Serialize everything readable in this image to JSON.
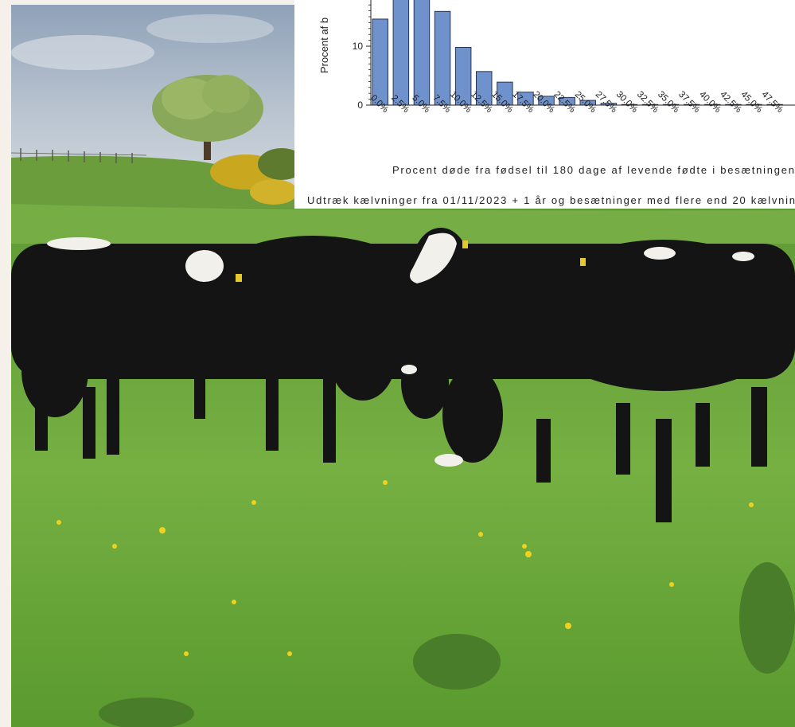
{
  "colors": {
    "sky": "#aab8c8",
    "grass": "#6aa23a",
    "cattle": "#141414",
    "bar_fill": "#7092cc",
    "bar_stroke": "#2a3550"
  },
  "chart_data": {
    "type": "bar",
    "ylabel": "Procent af b",
    "xlabel": "Procent døde fra fødsel til 180 dage af levende fødte i besætningen",
    "footnote": "Udtræk kælvninger fra 01/11/2023 + 1 år og besætninger med flere end 20 kælvnin",
    "yticks": [
      "0",
      "10"
    ],
    "ylim": [
      0,
      18
    ],
    "categories": [
      "0.0%",
      "2.5%",
      "5.0%",
      "7.5%",
      "10.0%",
      "12.5%",
      "15.0%",
      "17.5%",
      "20.0%",
      "22.5%",
      "25.0%",
      "27.5%",
      "30.0%",
      "32.5%",
      "35.0%",
      "37.5%",
      "40.0%",
      "42.5%",
      "45.0%",
      "47.5%"
    ],
    "values": [
      14.6,
      18.5,
      18.5,
      15.9,
      9.8,
      5.7,
      3.9,
      2.2,
      1.5,
      1.3,
      0.8,
      0.3,
      0.1,
      0.1,
      0.1,
      0.1,
      0.1,
      0.1,
      0.1,
      0.1
    ]
  }
}
